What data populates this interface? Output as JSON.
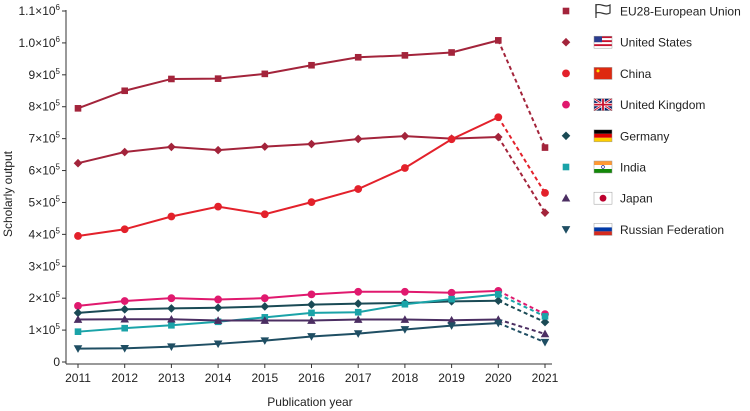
{
  "chart_data": {
    "type": "line",
    "title": "",
    "xlabel": "Publication year",
    "ylabel": "Scholarly output",
    "x": [
      2011,
      2012,
      2013,
      2014,
      2015,
      2016,
      2017,
      2018,
      2019,
      2020,
      2021
    ],
    "xlim": [
      2011,
      2021
    ],
    "ylim": [
      0,
      1100000
    ],
    "y_ticks": [
      {
        "value": 0,
        "base": "0",
        "exp": ""
      },
      {
        "value": 100000,
        "base": "1×10",
        "exp": "5"
      },
      {
        "value": 200000,
        "base": "2×10",
        "exp": "5"
      },
      {
        "value": 300000,
        "base": "3×10",
        "exp": "5"
      },
      {
        "value": 400000,
        "base": "4×10",
        "exp": "5"
      },
      {
        "value": 500000,
        "base": "5×10",
        "exp": "5"
      },
      {
        "value": 600000,
        "base": "6×10",
        "exp": "5"
      },
      {
        "value": 700000,
        "base": "7×10",
        "exp": "5"
      },
      {
        "value": 800000,
        "base": "8×10",
        "exp": "5"
      },
      {
        "value": 900000,
        "base": "9×10",
        "exp": "5"
      },
      {
        "value": 1000000,
        "base": "1.0×10",
        "exp": "6"
      },
      {
        "value": 1100000,
        "base": "1.1×10",
        "exp": "6"
      }
    ],
    "grid": false,
    "legend_position": "right",
    "last_segment_style": "dashed",
    "series": [
      {
        "name": "EU28-European Union",
        "color": "#a3243b",
        "marker": "square",
        "flag": "eu",
        "values": [
          795000,
          850000,
          887000,
          888000,
          903000,
          930000,
          955000,
          961000,
          970000,
          1008000,
          672000
        ]
      },
      {
        "name": "United States",
        "color": "#a3243b",
        "marker": "diamond",
        "flag": "us",
        "values": [
          623000,
          658000,
          674000,
          664000,
          675000,
          683000,
          699000,
          708000,
          700000,
          705000,
          468000
        ]
      },
      {
        "name": "China",
        "color": "#e3212b",
        "marker": "circle",
        "flag": "cn",
        "values": [
          395000,
          416000,
          456000,
          487000,
          463000,
          501000,
          542000,
          608000,
          698000,
          767000,
          530000
        ]
      },
      {
        "name": "United Kingdom",
        "color": "#e0196e",
        "marker": "circle",
        "flag": "uk",
        "values": [
          176000,
          191000,
          200000,
          196000,
          200000,
          212000,
          220000,
          220000,
          217000,
          223000,
          150000
        ]
      },
      {
        "name": "Germany",
        "color": "#1a4a55",
        "marker": "diamond",
        "flag": "de",
        "values": [
          154000,
          165000,
          168000,
          170000,
          174000,
          180000,
          183000,
          185000,
          190000,
          192000,
          125000
        ]
      },
      {
        "name": "India",
        "color": "#1aa3a8",
        "marker": "square",
        "flag": "in",
        "values": [
          95000,
          106000,
          115000,
          126000,
          140000,
          154000,
          156000,
          181000,
          197000,
          212000,
          143000
        ]
      },
      {
        "name": "Japan",
        "color": "#4b2e62",
        "marker": "triangle-up",
        "flag": "jp",
        "values": [
          133000,
          134000,
          134000,
          130000,
          130000,
          130000,
          133000,
          133000,
          131000,
          133000,
          88000
        ]
      },
      {
        "name": "Russian Federation",
        "color": "#1f4e63",
        "marker": "triangle-down",
        "flag": "ru",
        "values": [
          42000,
          43000,
          48000,
          57000,
          67000,
          80000,
          89000,
          102000,
          114000,
          122000,
          62000
        ]
      }
    ]
  }
}
